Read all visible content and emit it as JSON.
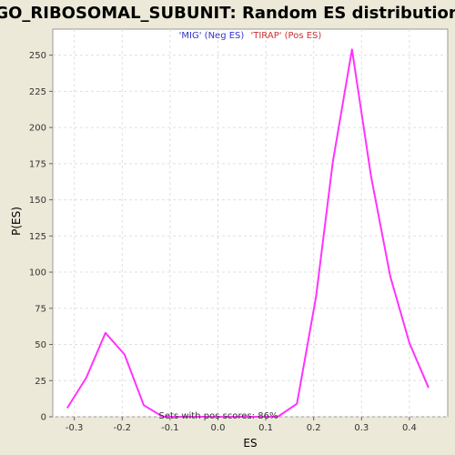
{
  "chart_data": {
    "type": "line",
    "title": "GO_RIBOSOMAL_SUBUNIT: Random ES distribution",
    "xlabel": "ES",
    "ylabel": "P(ES)",
    "xlim": [
      -0.345,
      0.48
    ],
    "ylim": [
      0,
      268
    ],
    "x_ticks": [
      -0.3,
      -0.2,
      -0.1,
      0.0,
      0.1,
      0.2,
      0.3,
      0.4
    ],
    "x_tick_labels": [
      "-0.3",
      "-0.2",
      "-0.1",
      "0.0",
      "0.1",
      "0.2",
      "0.3",
      "0.4"
    ],
    "y_ticks": [
      0,
      25,
      50,
      75,
      100,
      125,
      150,
      175,
      200,
      225,
      250
    ],
    "y_tick_labels": [
      "0",
      "25",
      "50",
      "75",
      "100",
      "125",
      "150",
      "175",
      "200",
      "225",
      "250"
    ],
    "grid": true,
    "legend": {
      "placement": "top-center",
      "entries": [
        {
          "label": "'MIG' (Neg ES)",
          "color": "#3333cc"
        },
        {
          "label": "'TIRAP' (Pos ES)",
          "color": "#cc3333"
        }
      ]
    },
    "annotation": "Sets with pos scores: 86%",
    "series": [
      {
        "color": "#ff33ff",
        "x": [
          -0.315,
          -0.275,
          -0.235,
          -0.195,
          -0.155,
          -0.115,
          0.125,
          0.165,
          0.205,
          0.24,
          0.28,
          0.32,
          0.36,
          0.4,
          0.44
        ],
        "y": [
          6,
          27,
          58,
          43,
          8,
          0,
          0,
          9,
          83,
          176,
          254,
          166,
          97,
          51,
          20
        ]
      }
    ]
  },
  "colors": {
    "background": "#ece9d8",
    "plot_background": "#ffffff",
    "grid": "#e0e0e0",
    "line": "#ff33ff"
  }
}
